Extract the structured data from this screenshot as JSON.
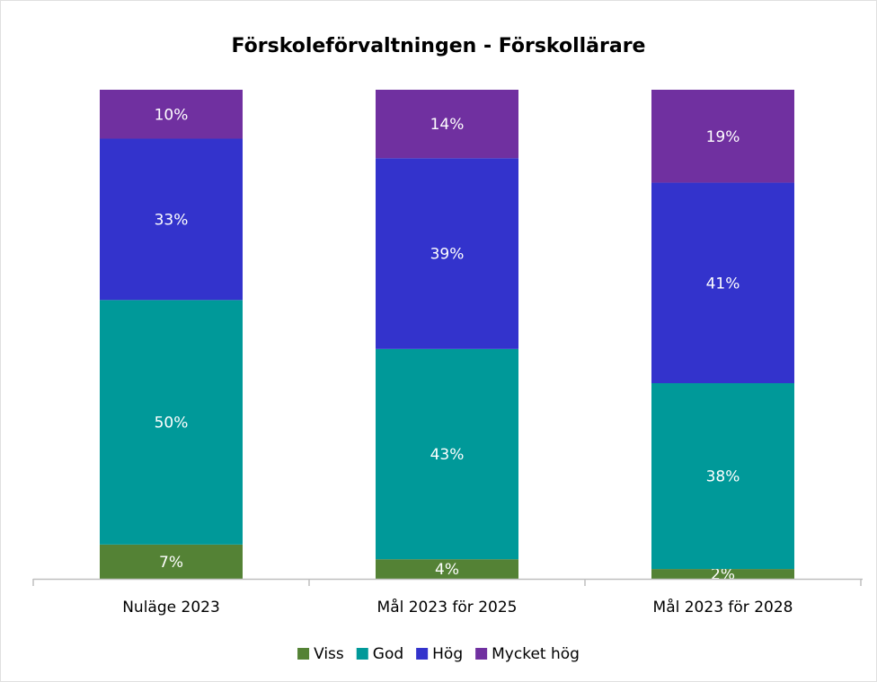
{
  "chart_data": {
    "type": "stacked_bar",
    "title": "Förskoleförvaltningen - Förskollärare",
    "categories": [
      "Nuläge 2023",
      "Mål 2023 för 2025",
      "Mål 2023 för 2028"
    ],
    "ylim": [
      0,
      100
    ],
    "series": [
      {
        "name": "Viss",
        "color": "#548235",
        "values": [
          7,
          4,
          2
        ],
        "value_labels": [
          "7%",
          "4%",
          "2%"
        ]
      },
      {
        "name": "God",
        "color": "#009999",
        "values": [
          50,
          43,
          38
        ],
        "value_labels": [
          "50%",
          "43%",
          "38%"
        ]
      },
      {
        "name": "Hög",
        "color": "#3333cc",
        "values": [
          33,
          39,
          41
        ],
        "value_labels": [
          "33%",
          "39%",
          "41%"
        ]
      },
      {
        "name": "Mycket hög",
        "color": "#7030a0",
        "values": [
          10,
          14,
          19
        ],
        "value_labels": [
          "10%",
          "14%",
          "19%"
        ]
      }
    ],
    "legend": "bottom"
  }
}
